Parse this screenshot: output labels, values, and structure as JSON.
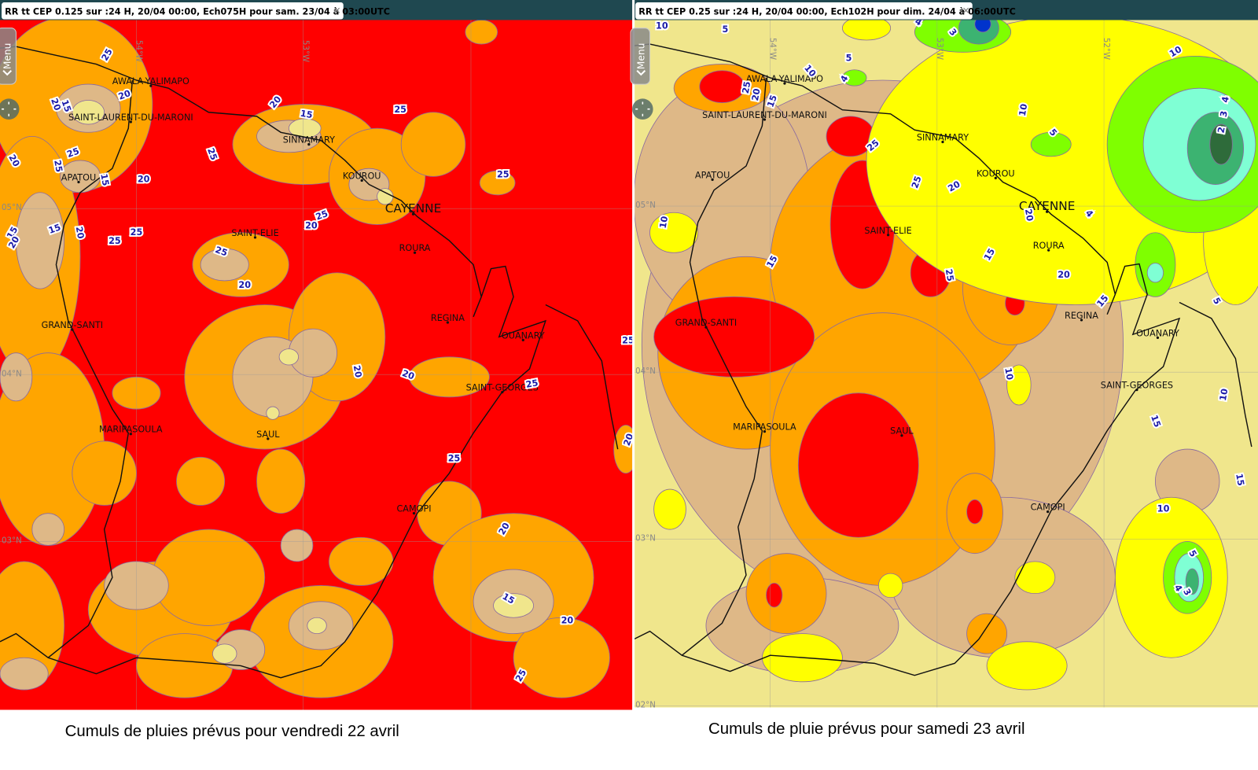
{
  "panels": [
    {
      "title": "RR tt CEP 0.125 sur :24 H, 20/04 00:00, Ech075H pour sam. 23/04 à 03:00UTC",
      "menu": "Menu",
      "grid_labels": [
        "54°W",
        "53°W",
        "05°N",
        "04°N",
        "03°N"
      ],
      "places": [
        "AWALA-YALIMAPO",
        "SAINT-LAURENT-DU-MARONI",
        "SINNAMARY",
        "KOUROU",
        "CAYENNE",
        "APATOU",
        "SAINT-ELIE",
        "ROURA",
        "REGINA",
        "GRAND-SANTI",
        "OUANARY",
        "SAINT-GEORGES",
        "MARIPASOULA",
        "SAUL",
        "CAMOPI"
      ],
      "contour_labels": [
        25,
        20,
        20,
        15,
        25,
        20,
        25,
        15,
        20,
        25,
        20,
        15,
        25,
        25,
        25,
        20,
        25,
        20,
        15,
        15,
        20,
        25,
        25,
        20,
        20,
        20,
        25,
        25,
        25,
        20,
        20,
        15,
        20,
        25
      ],
      "caption": "Cumuls de pluies prévus pour vendredi 22 avril"
    },
    {
      "title": "RR tt CEP 0.25 sur :24 H, 20/04 00:00, Ech102H pour dim. 24/04 à 06:00UTC",
      "menu": "Menu",
      "grid_labels": [
        "54°W",
        "53°W",
        "52°W",
        "05°N",
        "04°N",
        "03°N",
        "02°N"
      ],
      "places": [
        "AWALA-YALIMAPO",
        "SAINT-LAURENT-DU-MARONI",
        "SINNAMARY",
        "KOUROU",
        "CAYENNE",
        "APATOU",
        "SAINT-ELIE",
        "ROURA",
        "REGINA",
        "GRAND-SANTI",
        "OUANARY",
        "SAINT-GEORGES",
        "MARIPASOULA",
        "SAUL",
        "CAMOPI"
      ],
      "contour_labels": [
        10,
        5,
        4,
        3,
        5,
        4,
        10,
        25,
        20,
        15,
        10,
        10,
        5,
        4,
        3,
        2,
        25,
        25,
        20,
        4,
        20,
        10,
        15,
        15,
        25,
        20,
        15,
        5,
        10,
        10,
        15,
        15,
        10,
        5,
        4,
        3
      ],
      "caption": "Cumuls de pluie prévus pour samedi 23 avril"
    }
  ]
}
